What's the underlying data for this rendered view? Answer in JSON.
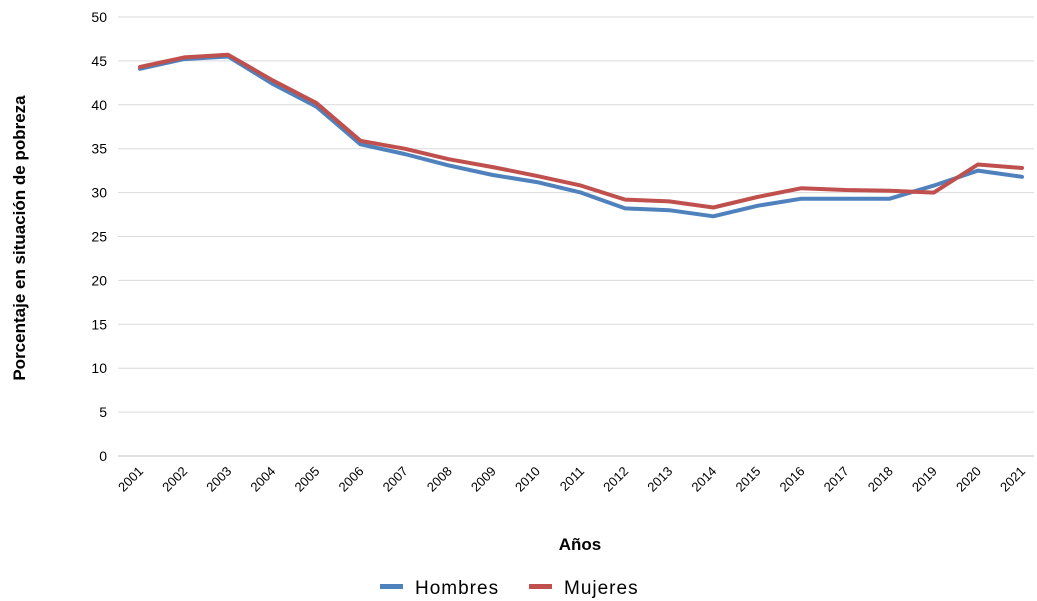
{
  "chart_data": {
    "type": "line",
    "title": "",
    "xlabel": "Años",
    "ylabel": "Porcentaje en situación de pobreza",
    "ylim": [
      0,
      50
    ],
    "yticks": [
      0,
      5,
      10,
      15,
      20,
      25,
      30,
      35,
      40,
      45,
      50
    ],
    "grid": true,
    "legend_position": "bottom",
    "categories": [
      "2001",
      "2002",
      "2003",
      "2004",
      "2005",
      "2006",
      "2007",
      "2008",
      "2009",
      "2010",
      "2011",
      "2012",
      "2013",
      "2014",
      "2015",
      "2016",
      "2017",
      "2018",
      "2019",
      "2020",
      "2021"
    ],
    "series": [
      {
        "name": "Hombres",
        "color": "#4f81bd",
        "values": [
          44.1,
          45.2,
          45.5,
          42.4,
          39.8,
          35.5,
          34.4,
          33.1,
          32.0,
          31.2,
          30.0,
          28.2,
          28.0,
          27.3,
          28.5,
          29.3,
          29.3,
          29.3,
          30.8,
          32.5,
          31.8
        ]
      },
      {
        "name": "Mujeres",
        "color": "#c0504d",
        "values": [
          44.3,
          45.4,
          45.7,
          42.8,
          40.2,
          35.9,
          35.0,
          33.8,
          32.9,
          31.9,
          30.8,
          29.2,
          29.0,
          28.3,
          29.5,
          30.5,
          30.3,
          30.2,
          30.0,
          33.2,
          32.8
        ]
      }
    ]
  }
}
